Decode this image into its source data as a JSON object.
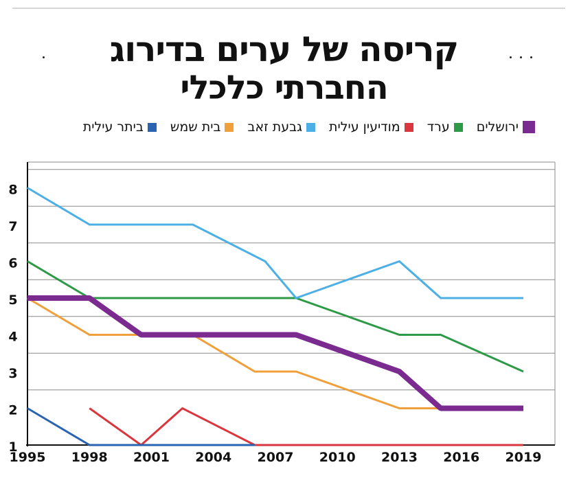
{
  "chart_data": {
    "type": "line",
    "title": [
      "קריסה של ערים בדירוג",
      "החברתי כלכלי"
    ],
    "xlabel": "",
    "ylabel": "",
    "x": [
      1995,
      1998,
      2001,
      2004,
      2007,
      2010,
      2013,
      2016,
      2019
    ],
    "yticks": [
      1,
      2,
      3,
      4,
      5,
      6,
      7,
      8
    ],
    "ylim": [
      1,
      8.8
    ],
    "series": [
      {
        "name": "ירושלים",
        "color": "#7b2a8f",
        "width": 8,
        "points": [
          [
            1995,
            5
          ],
          [
            1998,
            5
          ],
          [
            2000.5,
            4
          ],
          [
            2008,
            4
          ],
          [
            2013,
            3
          ],
          [
            2015,
            2
          ],
          [
            2019,
            2
          ]
        ]
      },
      {
        "name": "ערד",
        "color": "#2e9a48",
        "width": 3,
        "points": [
          [
            1995,
            6
          ],
          [
            1998,
            5
          ],
          [
            2008,
            5
          ],
          [
            2013,
            4
          ],
          [
            2015,
            4
          ],
          [
            2019,
            3
          ]
        ]
      },
      {
        "name": "מודיעין עילית",
        "color": "#d9363e",
        "width": 3,
        "points": [
          [
            1998,
            2
          ],
          [
            2000.5,
            1
          ],
          [
            2002.5,
            2
          ],
          [
            2006,
            1
          ],
          [
            2019,
            1
          ]
        ]
      },
      {
        "name": "גבעת זאב",
        "color": "#4cb0e6",
        "width": 3,
        "points": [
          [
            1995,
            8
          ],
          [
            1998,
            7
          ],
          [
            2003,
            7
          ],
          [
            2006.5,
            6
          ],
          [
            2008,
            5
          ],
          [
            2013,
            6
          ],
          [
            2015,
            5
          ],
          [
            2019,
            5
          ]
        ]
      },
      {
        "name": "בית שמש",
        "color": "#f0a03a",
        "width": 3,
        "points": [
          [
            1995,
            5
          ],
          [
            1998,
            4
          ],
          [
            2003,
            4
          ],
          [
            2006,
            3
          ],
          [
            2008,
            3
          ],
          [
            2013,
            2
          ],
          [
            2019,
            2
          ]
        ]
      },
      {
        "name": "ביתר עילית",
        "color": "#2a64b0",
        "width": 3,
        "points": [
          [
            1995,
            2
          ],
          [
            1998,
            1
          ],
          [
            2006,
            1
          ]
        ]
      }
    ],
    "legend_position": "top"
  }
}
